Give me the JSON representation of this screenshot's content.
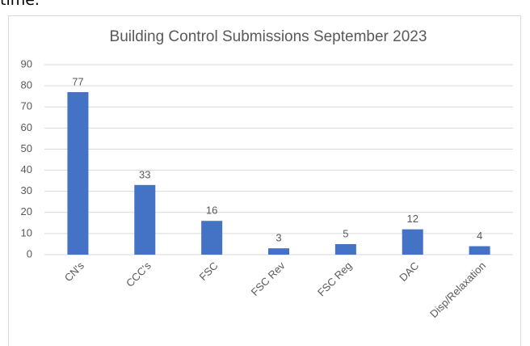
{
  "document_text": "time.",
  "chart_data": {
    "type": "bar",
    "title": "Building Control Submissions September 2023",
    "categories": [
      "CN's",
      "CCC's",
      "FSC",
      "FSC Rev",
      "FSC Reg",
      "DAC",
      "Disp/Relaxation"
    ],
    "values": [
      77,
      33,
      16,
      3,
      5,
      12,
      4
    ],
    "color": "#4472c4",
    "ylim": [
      0,
      90
    ],
    "yticks": [
      0,
      10,
      20,
      30,
      40,
      50,
      60,
      70,
      80,
      90
    ],
    "grid": true
  }
}
